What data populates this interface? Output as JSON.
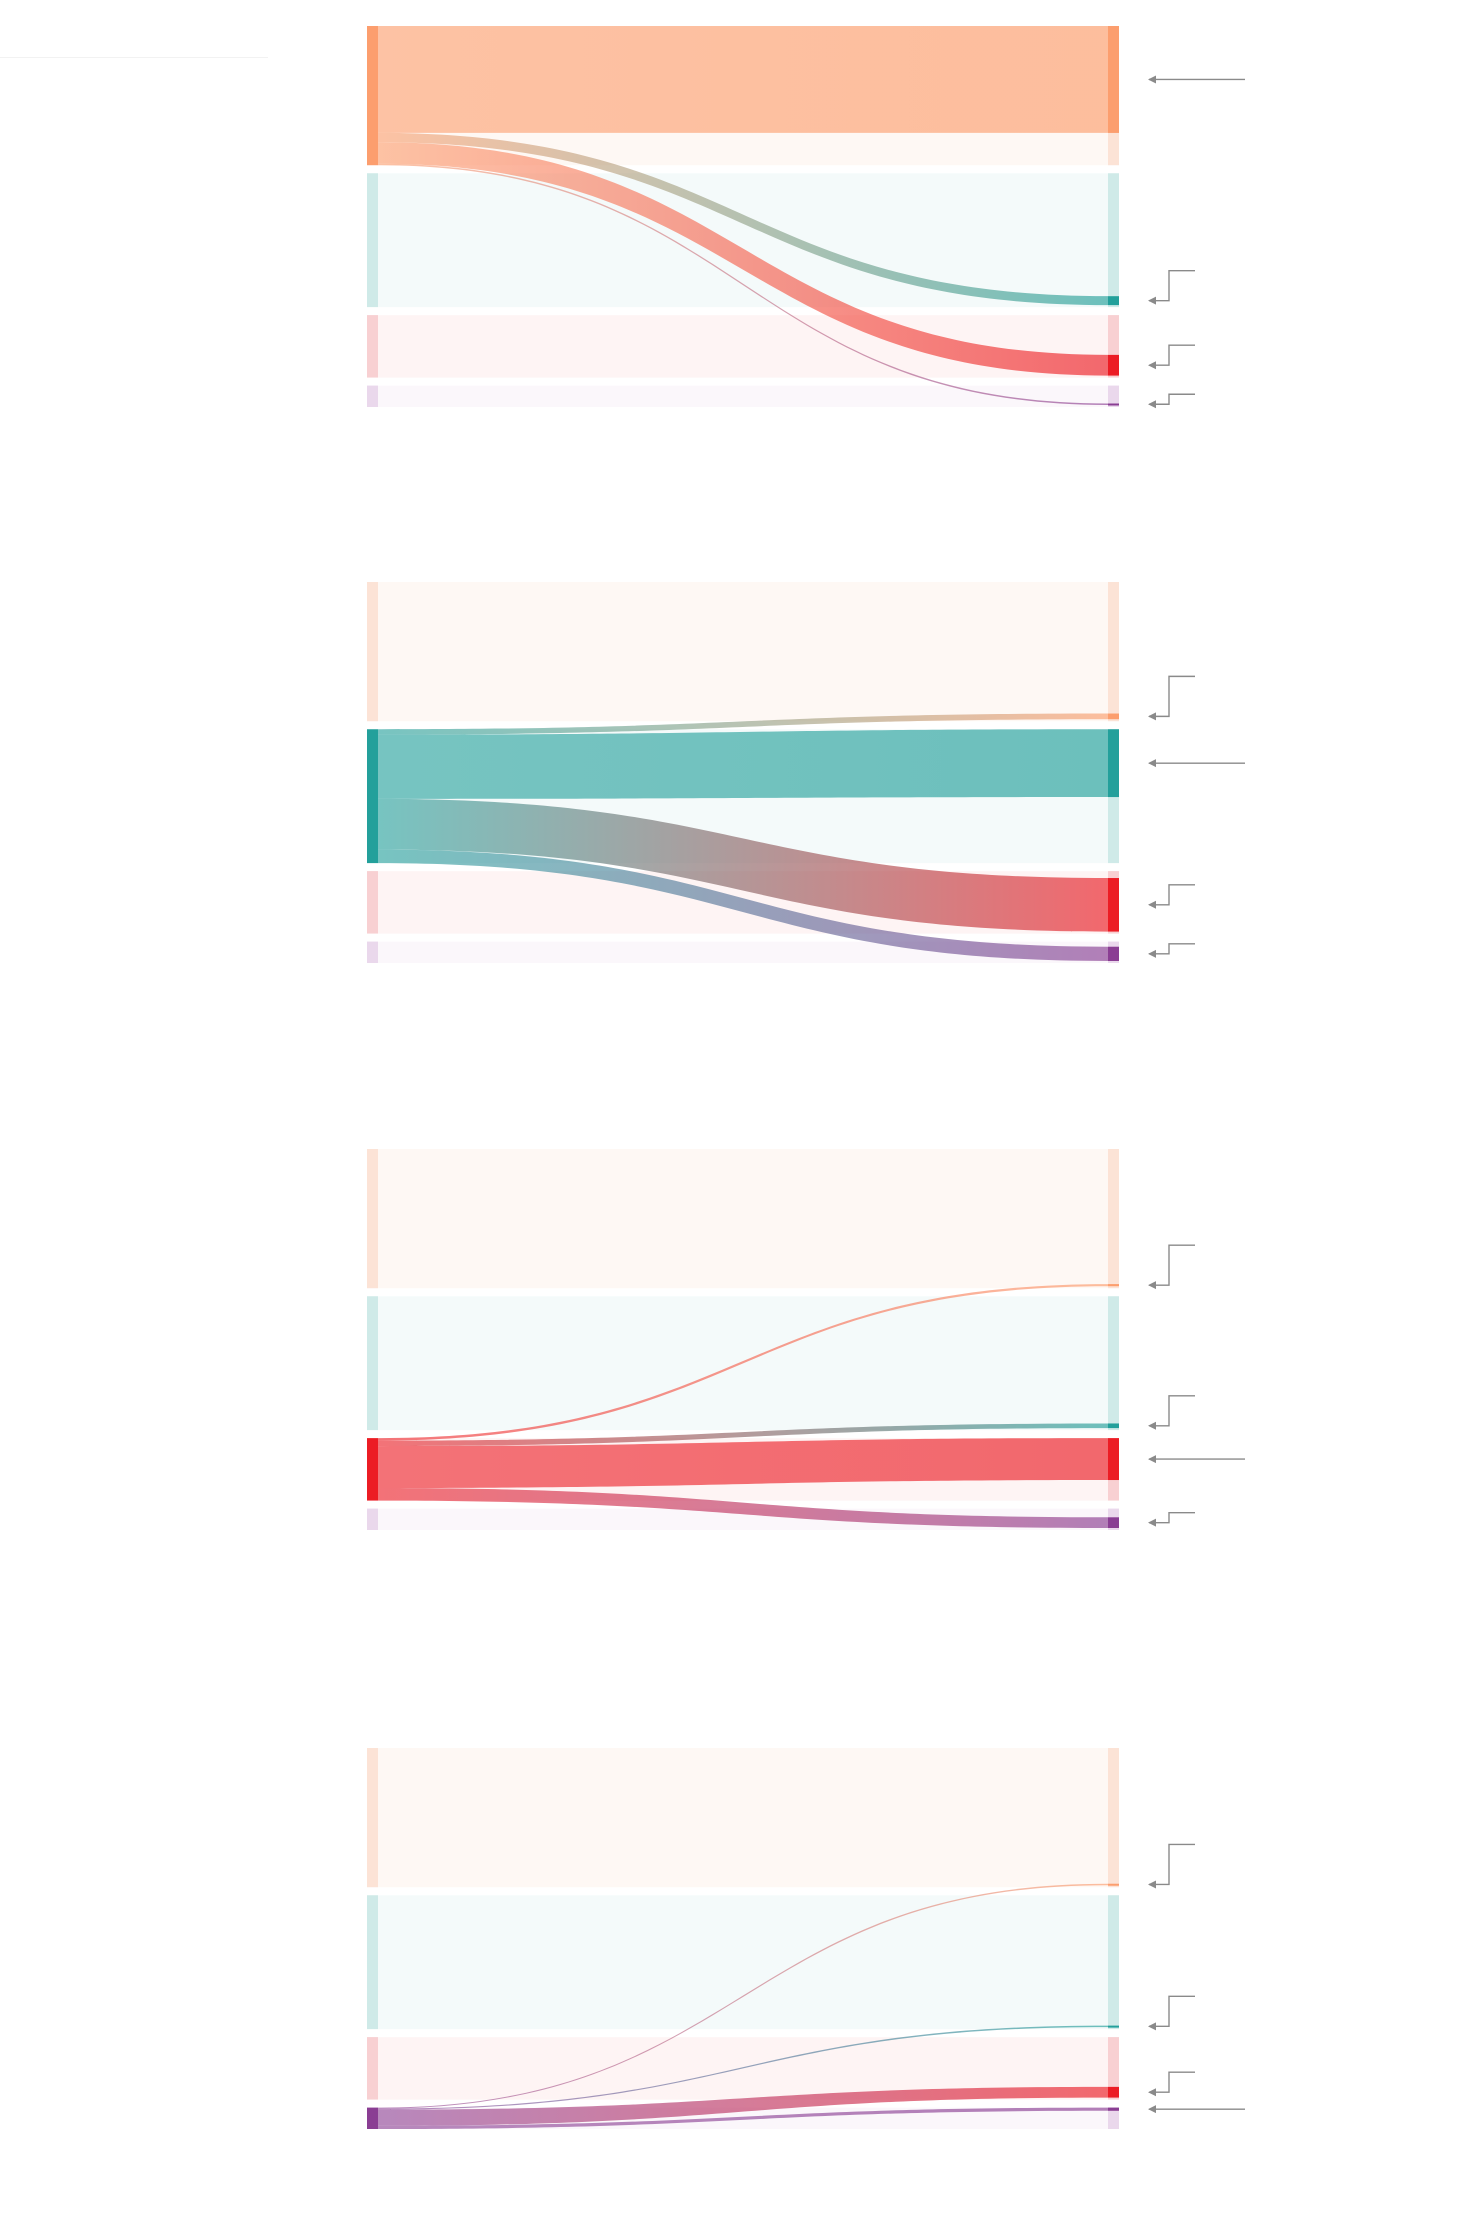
{
  "colors": {
    "categories": [
      "#FC9E6E",
      "#23A09B",
      "#EC1C24",
      "#8A3E93"
    ],
    "light": [
      "#FCE3D6",
      "#CFEAE8",
      "#F8D0D2",
      "#EAD8EC"
    ],
    "veil": [
      "#FEF7F3",
      "#F3FAF9",
      "#FEF3F3",
      "#FBF6FB"
    ],
    "callout": "#8A8A8A"
  },
  "chart_data": [
    {
      "type": "sankey",
      "highlight_source": 0,
      "source_shares": [
        0.39,
        0.375,
        0.175,
        0.06
      ],
      "flows": [
        0.288,
        0.025,
        0.058,
        0.004
      ]
    },
    {
      "type": "sankey",
      "highlight_source": 1,
      "source_shares": [
        0.39,
        0.375,
        0.175,
        0.06
      ],
      "flows": [
        0.016,
        0.19,
        0.15,
        0.04
      ]
    },
    {
      "type": "sankey",
      "highlight_source": 2,
      "source_shares": [
        0.39,
        0.375,
        0.175,
        0.06
      ],
      "flows": [
        0.006,
        0.013,
        0.1,
        0.03
      ]
    },
    {
      "type": "sankey",
      "highlight_source": 3,
      "source_shares": [
        0.39,
        0.375,
        0.175,
        0.06
      ],
      "flows": [
        0.002,
        0.002,
        0.03,
        0.006
      ]
    }
  ]
}
